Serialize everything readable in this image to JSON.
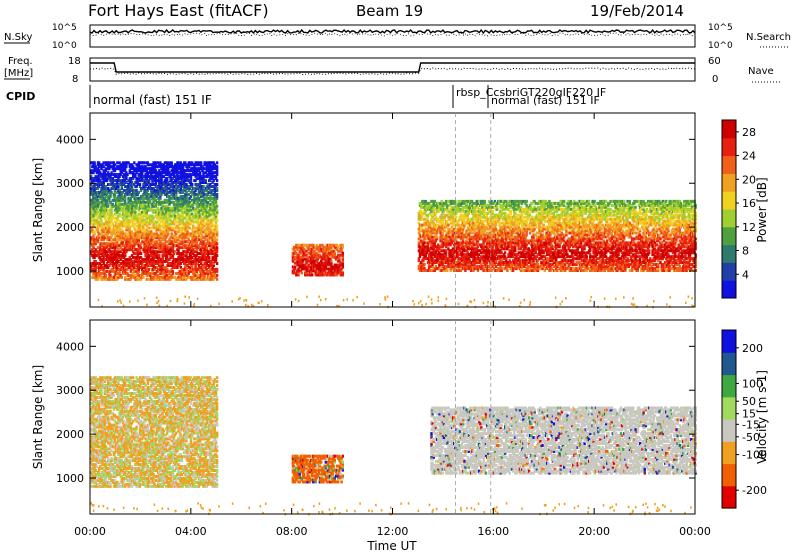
{
  "header": {
    "station": "Fort Hays East (fitACF)",
    "beam": "Beam 19",
    "date": "19/Feb/2014"
  },
  "noise_panel": {
    "left_label": "N.Sky",
    "right_label": "N.Search",
    "left_ticks": [
      "10^5",
      "10^0"
    ],
    "right_ticks": [
      "10^5",
      "10^0"
    ]
  },
  "freq_panel": {
    "left_label_1": "Freq.",
    "left_label_2": "[MHz]",
    "right_label": "Nave",
    "left_ticks": [
      "18",
      "8"
    ],
    "right_ticks": [
      "60",
      "0"
    ]
  },
  "cpid_panel": {
    "label": "CPID",
    "modes": [
      {
        "text": "normal (fast) 151 IF",
        "time": 0.0
      },
      {
        "text": "rbsp_CcsbriGT220gIF220 IF",
        "time": 14.5
      },
      {
        "text": "normal (fast) 151 IF",
        "time": 15.9
      }
    ]
  },
  "colors": {
    "power": [
      "#1010e0",
      "#2040a8",
      "#2e7a6e",
      "#50a040",
      "#a0d030",
      "#f0d020",
      "#f0a020",
      "#f06018",
      "#e82010",
      "#d00000"
    ],
    "velocity": [
      "#e00000",
      "#f06000",
      "#f0a020",
      "#c8c8c0",
      "#a0d860",
      "#40a840",
      "#205890",
      "#1010e0"
    ]
  },
  "chart_data": [
    {
      "type": "heatmap",
      "title": "Power",
      "xlabel": "Time UT",
      "ylabel": "Slant Range [km]",
      "xlim": [
        0,
        24
      ],
      "ylim": [
        180,
        4600
      ],
      "x_ticks": [
        "00:00",
        "04:00",
        "08:00",
        "12:00",
        "16:00",
        "20:00",
        "00:00"
      ],
      "y_ticks": [
        1000,
        2000,
        3000,
        4000
      ],
      "colorbar": {
        "label": "Power [dB]",
        "ticks": [
          4,
          8,
          12,
          16,
          20,
          24,
          28
        ],
        "range": [
          0,
          30
        ]
      },
      "echo_regions": [
        {
          "t0": 0.0,
          "t1": 5.0,
          "r_low": 800,
          "r_high": 3500,
          "peak_range": 1300
        },
        {
          "t0": 8.0,
          "t1": 10.0,
          "r_low": 900,
          "r_high": 1600,
          "peak_range": 1100
        },
        {
          "t0": 13.0,
          "t1": 24.0,
          "r_low": 1000,
          "r_high": 2600,
          "peak_range": 1400
        }
      ]
    },
    {
      "type": "heatmap",
      "title": "Velocity",
      "xlabel": "Time UT",
      "ylabel": "Slant Range [km]",
      "xlim": [
        0,
        24
      ],
      "ylim": [
        180,
        4600
      ],
      "x_ticks": [
        "00:00",
        "04:00",
        "08:00",
        "12:00",
        "16:00",
        "20:00",
        "00:00"
      ],
      "y_ticks": [
        1000,
        2000,
        3000,
        4000
      ],
      "colorbar": {
        "label": "Velocity [m s-1]",
        "ticks": [
          200,
          100,
          50,
          15,
          -15,
          -50,
          -100,
          -200
        ],
        "range": [
          -250,
          250
        ]
      },
      "echo_regions": [
        {
          "t0": 0.0,
          "t1": 5.0,
          "r_low": 800,
          "r_high": 3300,
          "dominant_velocity": -50
        },
        {
          "t0": 8.0,
          "t1": 10.0,
          "r_low": 900,
          "r_high": 1500,
          "dominant_velocity": -100
        },
        {
          "t0": 13.5,
          "t1": 24.0,
          "r_low": 1100,
          "r_high": 2600,
          "dominant_velocity": 0
        }
      ]
    }
  ]
}
